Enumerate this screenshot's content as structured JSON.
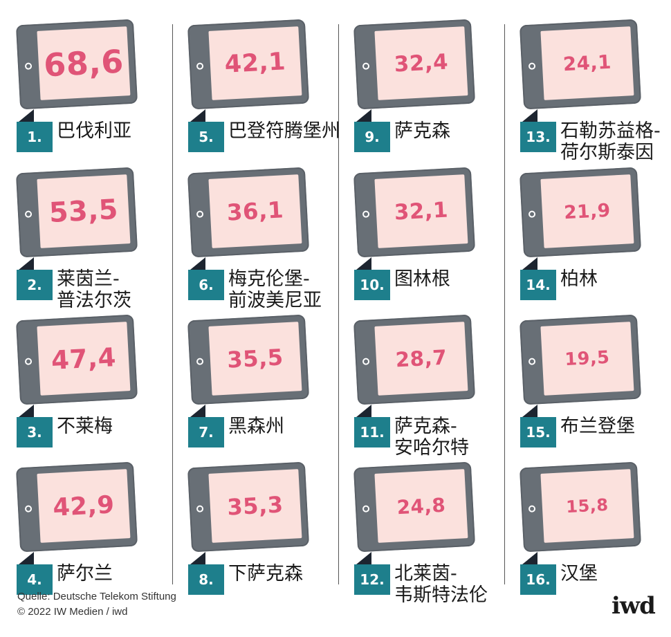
{
  "chart_data": {
    "type": "table",
    "items": [
      {
        "rank": "1.",
        "name": [
          "巴伐利亚"
        ],
        "value": "68,6",
        "number": 68.6
      },
      {
        "rank": "2.",
        "name": [
          "莱茵兰-",
          "普法尔茨"
        ],
        "value": "53,5",
        "number": 53.5
      },
      {
        "rank": "3.",
        "name": [
          "不莱梅"
        ],
        "value": "47,4",
        "number": 47.4
      },
      {
        "rank": "4.",
        "name": [
          "萨尔兰"
        ],
        "value": "42,9",
        "number": 42.9
      },
      {
        "rank": "5.",
        "name": [
          "巴登符腾堡州"
        ],
        "value": "42,1",
        "number": 42.1
      },
      {
        "rank": "6.",
        "name": [
          "梅克伦堡-",
          "前波美尼亚"
        ],
        "value": "36,1",
        "number": 36.1
      },
      {
        "rank": "7.",
        "name": [
          "黑森州"
        ],
        "value": "35,5",
        "number": 35.5
      },
      {
        "rank": "8.",
        "name": [
          "下萨克森"
        ],
        "value": "35,3",
        "number": 35.3
      },
      {
        "rank": "9.",
        "name": [
          "萨克森"
        ],
        "value": "32,4",
        "number": 32.4
      },
      {
        "rank": "10.",
        "name": [
          "图林根"
        ],
        "value": "32,1",
        "number": 32.1
      },
      {
        "rank": "11.",
        "name": [
          "萨克森-",
          "安哈尔特"
        ],
        "value": "28,7",
        "number": 28.7
      },
      {
        "rank": "12.",
        "name": [
          "北莱茵-",
          "韦斯特法伦"
        ],
        "value": "24,8",
        "number": 24.8
      },
      {
        "rank": "13.",
        "name": [
          "石勒苏益格-",
          "荷尔斯泰因"
        ],
        "value": "24,1",
        "number": 24.1
      },
      {
        "rank": "14.",
        "name": [
          "柏林"
        ],
        "value": "21,9",
        "number": 21.9
      },
      {
        "rank": "15.",
        "name": [
          "布兰登堡"
        ],
        "value": "19,5",
        "number": 19.5
      },
      {
        "rank": "16.",
        "name": [
          "汉堡"
        ],
        "value": "15,8",
        "number": 15.8
      }
    ]
  },
  "footer": {
    "source_line": "Quelle: Deutsche Telekom Stiftung",
    "copyright_line": "© 2022 IW Medien / iwd",
    "logo": "iwd"
  },
  "colors": {
    "rank_badge": "#1e7f8c",
    "value_text": "#e05477",
    "screen": "#fbe1dd",
    "tablet_frame": "#686f76"
  }
}
